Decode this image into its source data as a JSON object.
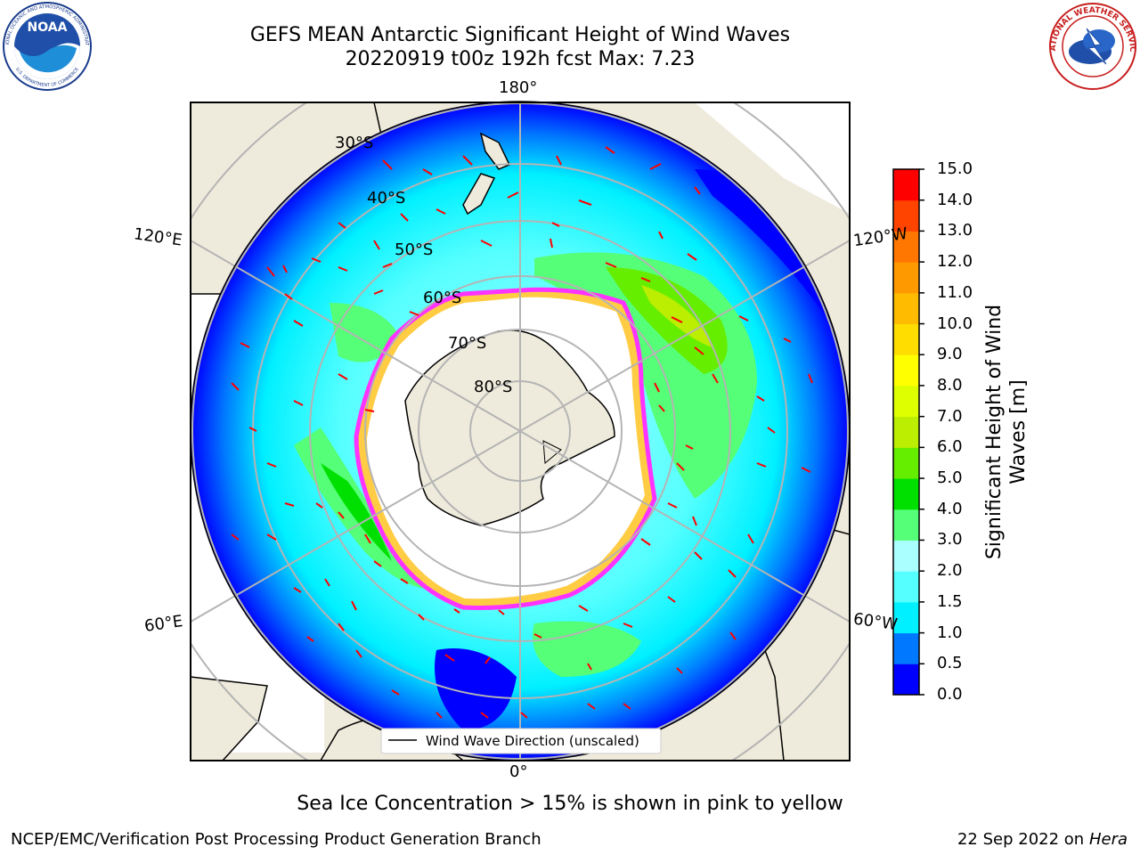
{
  "header": {
    "title_line1": "GEFS MEAN Antarctic Significant Height of Wind Waves",
    "title_line2": "20220919 t00z 192h fcst   Max: 7.23"
  },
  "logos": {
    "left": "NOAA",
    "left_ring": "NATIONAL OCEANIC AND ATMOSPHERIC ADMINISTRATION",
    "left_ring_bottom": "U.S. DEPARTMENT OF COMMERCE",
    "right_ring": "NATIONAL WEATHER SERVICE"
  },
  "map": {
    "projection": "south polar stereographic",
    "longitude_labels": {
      "top": "180°",
      "left_upper": "120°E",
      "right_upper": "120°W",
      "left_lower": "60°E",
      "right_lower": "60°W",
      "bottom": "0°"
    },
    "latitude_labels": [
      "30°S",
      "40°S",
      "50°S",
      "60°S",
      "70°S",
      "80°S"
    ],
    "legend": "Wind Wave Direction (unscaled)",
    "colors": {
      "land": "#efebdc",
      "ice_edge": "#ff33ff",
      "ice_inner": "#ffcc44",
      "arrow": "#ff0000",
      "graticule": "#b4b4b4"
    }
  },
  "colorbar": {
    "label": "Significant Height of Wind Waves [m]",
    "label_line1": "Significant Height of Wind",
    "label_line2": "Waves [m]",
    "ticks": [
      "0.0",
      "0.5",
      "1.0",
      "1.5",
      "2.0",
      "3.0",
      "4.0",
      "5.0",
      "6.0",
      "7.0",
      "8.0",
      "9.0",
      "10.0",
      "11.0",
      "12.0",
      "13.0",
      "14.0",
      "15.0"
    ],
    "colors": [
      "#0000ff",
      "#0078ff",
      "#00f0ff",
      "#55ffff",
      "#aaffff",
      "#55ff77",
      "#00e000",
      "#66ee00",
      "#bbee00",
      "#ddff00",
      "#ffff00",
      "#ffdd00",
      "#ffbb00",
      "#ff9900",
      "#ff7700",
      "#ff4400",
      "#ff0000"
    ]
  },
  "footer": {
    "note": "Sea Ice Concentration > 15% is shown in pink to yellow",
    "credit": "NCEP/EMC/Verification Post Processing Product Generation Branch",
    "date": "22 Sep 2022 on",
    "machine": "Hera"
  }
}
